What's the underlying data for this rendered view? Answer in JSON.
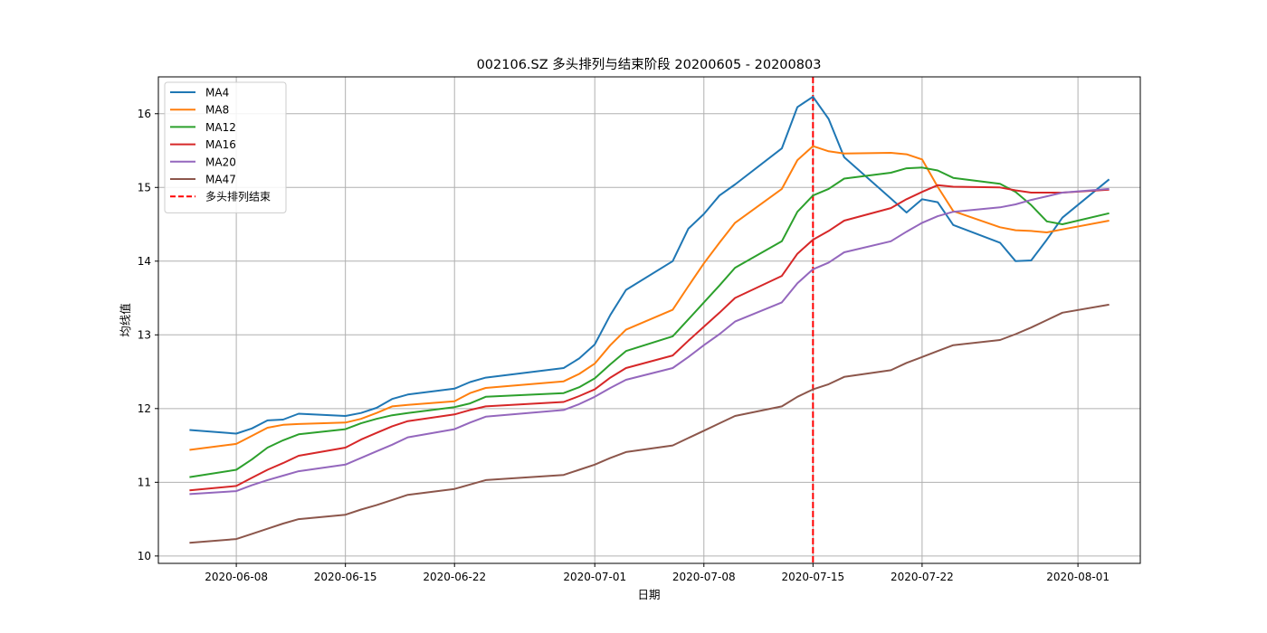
{
  "chart_data": {
    "type": "line",
    "title": "002106.SZ 多头排列与结束阶段 20200605 - 20200803",
    "xlabel": "日期",
    "ylabel": "均线值",
    "ylim": [
      9.9,
      16.5
    ],
    "xlim": [
      "2020-06-03",
      "2020-08-05"
    ],
    "grid": true,
    "legend_position": "top-left",
    "x_ticks": [
      "2020-06-08",
      "2020-06-15",
      "2020-06-22",
      "2020-07-01",
      "2020-07-08",
      "2020-07-15",
      "2020-07-22",
      "2020-08-01"
    ],
    "y_ticks": [
      10,
      11,
      12,
      13,
      14,
      15,
      16
    ],
    "x": [
      "2020-06-05",
      "2020-06-08",
      "2020-06-09",
      "2020-06-10",
      "2020-06-11",
      "2020-06-12",
      "2020-06-15",
      "2020-06-16",
      "2020-06-17",
      "2020-06-18",
      "2020-06-19",
      "2020-06-22",
      "2020-06-23",
      "2020-06-24",
      "2020-06-29",
      "2020-06-30",
      "2020-07-01",
      "2020-07-02",
      "2020-07-03",
      "2020-07-06",
      "2020-07-07",
      "2020-07-08",
      "2020-07-09",
      "2020-07-10",
      "2020-07-13",
      "2020-07-14",
      "2020-07-15",
      "2020-07-16",
      "2020-07-17",
      "2020-07-20",
      "2020-07-21",
      "2020-07-22",
      "2020-07-23",
      "2020-07-24",
      "2020-07-27",
      "2020-07-28",
      "2020-07-29",
      "2020-07-30",
      "2020-07-31",
      "2020-08-03"
    ],
    "series": [
      {
        "name": "MA4",
        "color": "#1f77b4",
        "values": [
          11.71,
          11.66,
          11.73,
          11.84,
          11.85,
          11.93,
          11.9,
          11.94,
          12.01,
          12.13,
          12.19,
          12.27,
          12.36,
          12.42,
          12.55,
          12.68,
          12.87,
          13.27,
          13.61,
          14.0,
          14.44,
          14.64,
          14.89,
          15.04,
          15.53,
          16.09,
          16.23,
          15.93,
          15.41,
          14.85,
          14.66,
          14.84,
          14.8,
          14.49,
          14.25,
          14.0,
          14.01,
          14.29,
          14.59,
          15.11
        ]
      },
      {
        "name": "MA8",
        "color": "#ff7f0e",
        "values": [
          11.44,
          11.52,
          11.63,
          11.74,
          11.78,
          11.79,
          11.81,
          11.86,
          11.94,
          12.03,
          12.05,
          12.1,
          12.21,
          12.28,
          12.37,
          12.47,
          12.61,
          12.86,
          13.07,
          13.34,
          13.66,
          13.97,
          14.25,
          14.52,
          14.98,
          15.37,
          15.56,
          15.49,
          15.46,
          15.47,
          15.45,
          15.38,
          15.01,
          14.68,
          14.46,
          14.42,
          14.41,
          14.39,
          14.43,
          14.55
        ]
      },
      {
        "name": "MA12",
        "color": "#2ca02c",
        "values": [
          11.07,
          11.17,
          11.31,
          11.47,
          11.57,
          11.65,
          11.72,
          11.8,
          11.86,
          11.91,
          11.94,
          12.02,
          12.07,
          12.16,
          12.21,
          12.29,
          12.41,
          12.6,
          12.78,
          12.98,
          13.21,
          13.44,
          13.67,
          13.91,
          14.27,
          14.67,
          14.89,
          14.98,
          15.12,
          15.2,
          15.26,
          15.27,
          15.23,
          15.13,
          15.05,
          14.94,
          14.76,
          14.54,
          14.5,
          14.65
        ]
      },
      {
        "name": "MA16",
        "color": "#d62728",
        "values": [
          10.89,
          10.95,
          11.06,
          11.17,
          11.26,
          11.36,
          11.47,
          11.58,
          11.67,
          11.76,
          11.83,
          11.92,
          11.98,
          12.03,
          12.09,
          12.17,
          12.26,
          12.42,
          12.55,
          12.72,
          12.92,
          13.11,
          13.3,
          13.5,
          13.8,
          14.1,
          14.29,
          14.41,
          14.55,
          14.72,
          14.84,
          14.94,
          15.03,
          15.01,
          15.0,
          14.96,
          14.93,
          14.93,
          14.93,
          14.97
        ]
      },
      {
        "name": "MA20",
        "color": "#9467bd",
        "values": [
          10.84,
          10.88,
          10.96,
          11.03,
          11.09,
          11.15,
          11.24,
          11.33,
          11.42,
          11.51,
          11.61,
          11.72,
          11.81,
          11.89,
          11.98,
          12.06,
          12.16,
          12.28,
          12.39,
          12.55,
          12.7,
          12.86,
          13.01,
          13.18,
          13.44,
          13.7,
          13.89,
          13.98,
          14.12,
          14.27,
          14.4,
          14.52,
          14.61,
          14.67,
          14.73,
          14.77,
          14.83,
          14.88,
          14.93,
          14.98
        ]
      },
      {
        "name": "MA47",
        "color": "#8c564b",
        "values": [
          10.18,
          10.23,
          10.3,
          10.37,
          10.44,
          10.5,
          10.56,
          10.63,
          10.69,
          10.76,
          10.83,
          10.91,
          10.97,
          11.03,
          11.1,
          11.17,
          11.24,
          11.33,
          11.41,
          11.5,
          11.6,
          11.7,
          11.8,
          11.9,
          12.03,
          12.16,
          12.26,
          12.33,
          12.43,
          12.52,
          12.62,
          12.7,
          12.78,
          12.86,
          12.93,
          13.01,
          13.1,
          13.2,
          13.3,
          13.41
        ]
      }
    ],
    "annotations": [
      {
        "type": "vline",
        "x": "2020-07-15",
        "color": "#ff0000",
        "style": "dashed",
        "label": "多头排列结束"
      }
    ]
  }
}
